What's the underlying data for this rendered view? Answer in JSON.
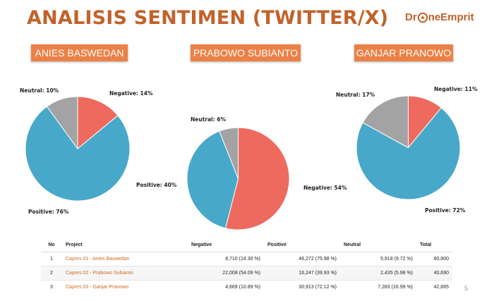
{
  "header": {
    "title": "ANALISIS SENTIMEN (TWITTER/X)",
    "logo_prefix": "Dr",
    "logo_suffix": "neEmprit"
  },
  "colors": {
    "negative": "#ee6a5f",
    "positive": "#48a8c9",
    "neutral": "#a3a3a3",
    "accent": "#eb8146",
    "title": "#c2622a"
  },
  "chart_data": [
    {
      "type": "pie",
      "title": "ANIES BASWEDAN",
      "labels": [
        "Negative",
        "Positive",
        "Neutral"
      ],
      "values": [
        14,
        76,
        10
      ],
      "label_text": [
        "Negative: 14%",
        "Positive: 76%",
        "Neutral: 10%"
      ]
    },
    {
      "type": "pie",
      "title": "PRABOWO SUBIANTO",
      "labels": [
        "Negative",
        "Positive",
        "Neutral"
      ],
      "values": [
        54,
        40,
        6
      ],
      "label_text": [
        "Negative: 54%",
        "Positive: 40%",
        "Neutral: 6%"
      ]
    },
    {
      "type": "pie",
      "title": "GANJAR PRANOWO",
      "labels": [
        "Negative",
        "Positive",
        "Neutral"
      ],
      "values": [
        11,
        72,
        17
      ],
      "label_text": [
        "Negative: 11%",
        "Positive: 72%",
        "Neutral: 17%"
      ]
    }
  ],
  "table": {
    "headers": [
      "No",
      "Project",
      "Negative",
      "Positive",
      "Neutral",
      "Total"
    ],
    "rows": [
      [
        "1",
        "Capres 01 - Anies Baswedan",
        "8,710 (14.30 %)",
        "46,272 (75.98 %)",
        "5,918 (9.72 %)",
        "60,900"
      ],
      [
        "2",
        "Capres 02 - Prabowo Subianto",
        "22,008 (54.09 %)",
        "16,247 (39.93 %)",
        "2,435 (5.98 %)",
        "40,690"
      ],
      [
        "3",
        "Capres 03 - Ganjar Pranowo",
        "4,669 (10.89 %)",
        "30,913 (72.12 %)",
        "7,283 (16.99 %)",
        "42,865"
      ]
    ]
  },
  "footer": {
    "page_number": "5"
  }
}
